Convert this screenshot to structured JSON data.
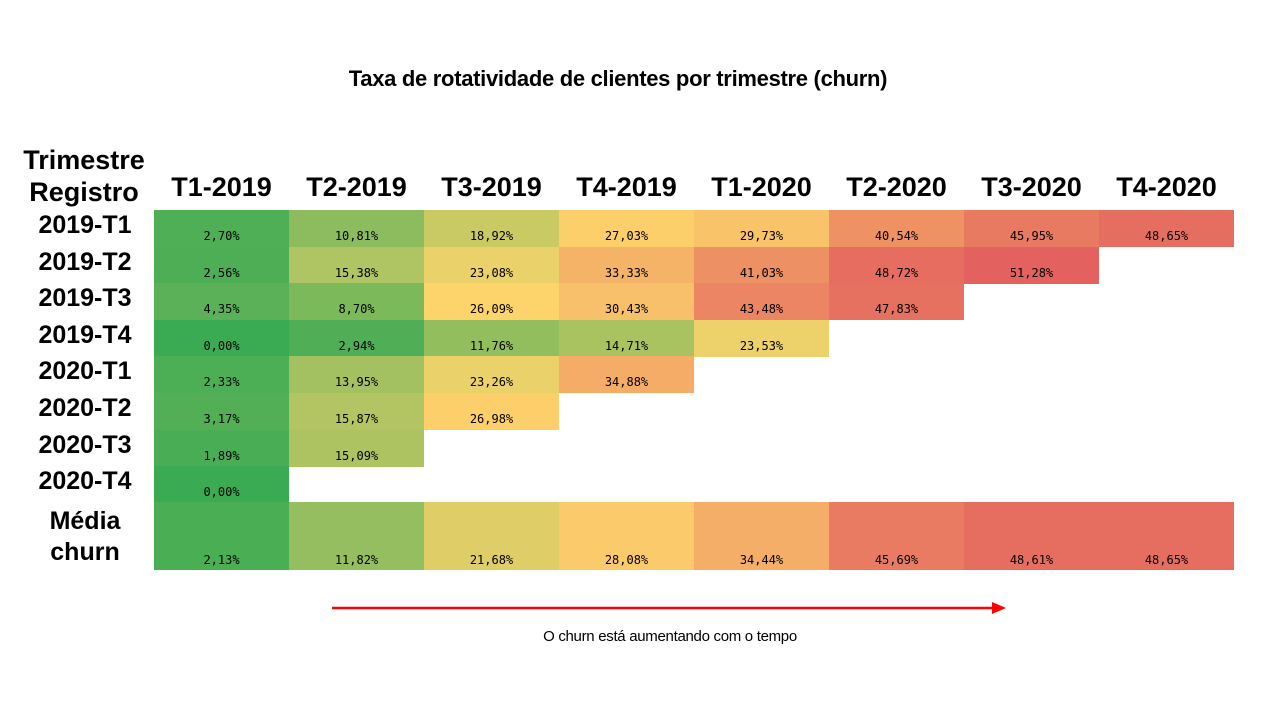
{
  "chart_data": {
    "type": "heatmap",
    "title": "Taxa de rotatividade de clientes por trimestre (churn)",
    "row_axis_label": [
      "Trimestre",
      "Registro"
    ],
    "columns": [
      "T1-2019",
      "T2-2019",
      "T3-2019",
      "T4-2019",
      "T1-2020",
      "T2-2020",
      "T3-2020",
      "T4-2020"
    ],
    "rows": [
      {
        "label": "2019-T1",
        "values": [
          "2,70%",
          "10,81%",
          "18,92%",
          "27,03%",
          "29,73%",
          "40,54%",
          "45,95%",
          "48,65%"
        ]
      },
      {
        "label": "2019-T2",
        "values": [
          "2,56%",
          "15,38%",
          "23,08%",
          "33,33%",
          "41,03%",
          "48,72%",
          "51,28%"
        ]
      },
      {
        "label": "2019-T3",
        "values": [
          "4,35%",
          "8,70%",
          "26,09%",
          "30,43%",
          "43,48%",
          "47,83%"
        ]
      },
      {
        "label": "2019-T4",
        "values": [
          "0,00%",
          "2,94%",
          "11,76%",
          "14,71%",
          "23,53%"
        ]
      },
      {
        "label": "2020-T1",
        "values": [
          "2,33%",
          "13,95%",
          "23,26%",
          "34,88%"
        ]
      },
      {
        "label": "2020-T2",
        "values": [
          "3,17%",
          "15,87%",
          "26,98%"
        ]
      },
      {
        "label": "2020-T3",
        "values": [
          "1,89%",
          "15,09%"
        ]
      },
      {
        "label": "2020-T4",
        "values": [
          "0,00%"
        ]
      }
    ],
    "average_row": {
      "label": [
        "Média",
        "churn"
      ],
      "values": [
        "2,13%",
        "11,82%",
        "21,68%",
        "28,08%",
        "34,44%",
        "45,69%",
        "48,61%",
        "48,65%"
      ]
    },
    "color_scale": {
      "low": "#3aaa53",
      "mid": "#fdd56c",
      "high": "#e3625f"
    },
    "annotation": "O churn está aumentando com o tempo",
    "annotation_arrow_color": "#ff0000"
  }
}
